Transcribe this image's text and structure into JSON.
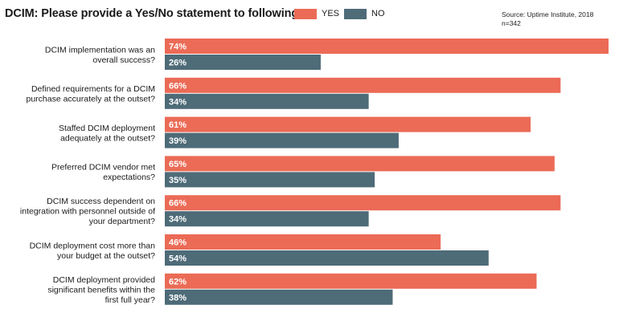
{
  "title": "DCIM: Please provide a Yes/No statement to following:",
  "source_line1": "Source: Uptime Institute, 2018",
  "source_line2": "n=342",
  "colors": {
    "yes": "#EB6B56",
    "no": "#4E6B78"
  },
  "chart_data": {
    "type": "bar",
    "orientation": "horizontal",
    "title": "DCIM: Please provide a Yes/No statement to following:",
    "categories": [
      [
        "DCIM implementation was an",
        "overall success?"
      ],
      [
        "Defined requirements for a DCIM",
        "purchase accurately at the outset?"
      ],
      [
        "Staffed DCIM deployment",
        "adequately at the outset?"
      ],
      [
        "Preferred DCIM vendor met",
        "expectations?"
      ],
      [
        "DCIM success dependent on",
        "integration with personnel outside of",
        "your department?"
      ],
      [
        "DCIM deployment cost more than",
        "your budget at the outset?"
      ],
      [
        "DCIM deployment provided",
        "significant benefits within the",
        "first full year?"
      ]
    ],
    "series": [
      {
        "name": "YES",
        "values": [
          74,
          66,
          61,
          65,
          66,
          46,
          62
        ],
        "labels": [
          "74%",
          "66%",
          "61%",
          "65%",
          "66%",
          "46%",
          "62%"
        ]
      },
      {
        "name": "NO",
        "values": [
          26,
          34,
          39,
          35,
          34,
          54,
          38
        ],
        "labels": [
          "26%",
          "34%",
          "39%",
          "35%",
          "34%",
          "54%",
          "38%"
        ]
      }
    ],
    "xlim": [
      0,
      74
    ],
    "grid": false,
    "legend": "top"
  }
}
